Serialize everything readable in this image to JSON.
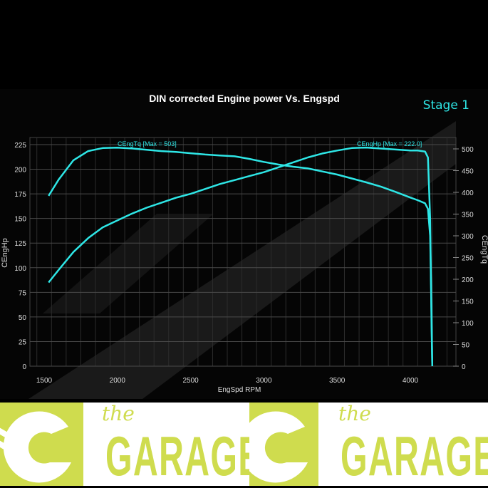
{
  "chart_data": {
    "type": "line",
    "title": "DIN corrected Engine power Vs. Engspd",
    "badge": "Stage 1",
    "xlabel": "EngSpd RPM",
    "ylabel_left": "CEngHp",
    "ylabel_right": "CEngTq",
    "xlim": [
      1400,
      4330
    ],
    "ylim_left": [
      0,
      230
    ],
    "ylim_right": [
      0,
      510
    ],
    "x_ticks": [
      1500,
      2000,
      2500,
      3000,
      3500,
      4000
    ],
    "y_left_ticks": [
      0,
      25,
      50,
      75,
      100,
      125,
      150,
      175,
      200,
      225
    ],
    "y_right_ticks": [
      0,
      50,
      100,
      150,
      200,
      250,
      300,
      350,
      400,
      450,
      500
    ],
    "grid": true,
    "line_color": "#2ee6e6",
    "series": [
      {
        "name": "CEngHp",
        "label": "CEngHp [Max = 222.0]",
        "axis": "left",
        "x": [
          1530,
          1600,
          1700,
          1800,
          1900,
          2000,
          2100,
          2200,
          2300,
          2400,
          2500,
          2600,
          2700,
          2800,
          2900,
          3000,
          3100,
          3200,
          3300,
          3400,
          3500,
          3600,
          3700,
          3800,
          3900,
          4000,
          4050,
          4100,
          4120,
          4135,
          4145,
          4150
        ],
        "y": [
          85,
          98,
          116,
          130,
          141,
          148,
          155,
          161,
          166,
          171,
          175,
          180,
          185,
          189,
          193,
          197,
          202,
          207,
          212,
          216,
          219,
          221.5,
          222,
          221,
          220,
          219,
          219,
          218,
          212,
          150,
          40,
          0
        ]
      },
      {
        "name": "CEngTq",
        "label": "CEngTq [Max = 503]",
        "axis": "right",
        "x": [
          1530,
          1600,
          1700,
          1800,
          1900,
          2000,
          2100,
          2200,
          2300,
          2400,
          2500,
          2600,
          2700,
          2800,
          2900,
          3000,
          3100,
          3200,
          3300,
          3400,
          3500,
          3600,
          3700,
          3800,
          3900,
          4000,
          4050,
          4100,
          4120,
          4135,
          4145,
          4150
        ],
        "y": [
          392,
          430,
          474,
          495,
          502,
          503,
          501,
          498,
          495,
          493,
          490,
          487,
          485,
          483,
          477,
          470,
          464,
          459,
          455,
          448,
          441,
          432,
          423,
          413,
          401,
          388,
          382,
          375,
          362,
          300,
          120,
          0
        ]
      }
    ]
  },
  "logo": {
    "the_text": "the",
    "brand_text": "GARAGE",
    "color": "#cfdc4e"
  }
}
